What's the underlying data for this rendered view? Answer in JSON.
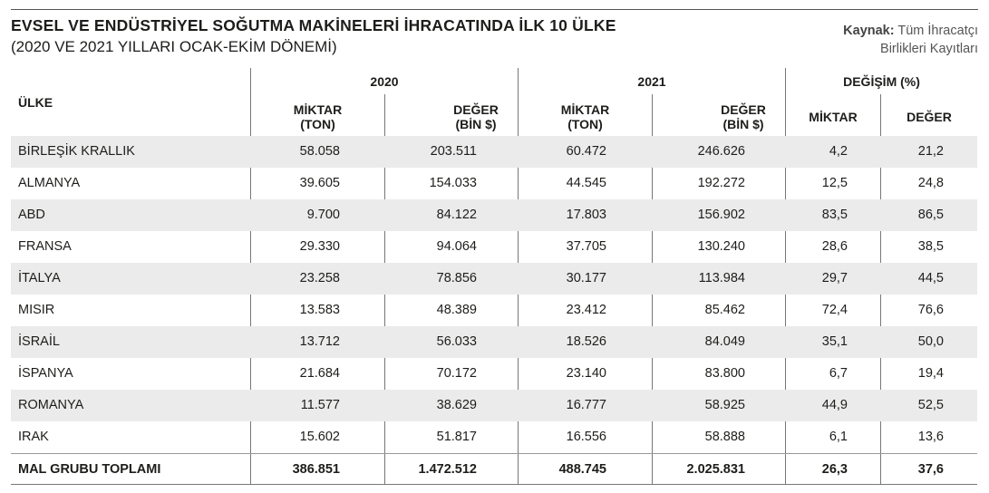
{
  "title": "EVSEL VE ENDÜSTRİYEL SOĞUTMA MAKİNELERİ İHRACATINDA İLK 10 ÜLKE",
  "subtitle": "(2020 VE 2021 YILLARI OCAK-EKİM DÖNEMİ)",
  "source": {
    "label": "Kaynak:",
    "line1": "Tüm İhracatçı",
    "line2": "Birlikleri Kayıtları"
  },
  "headers": {
    "country": "ÜLKE",
    "year_2020": "2020",
    "year_2021": "2021",
    "change": "DEĞİŞİM (%)",
    "qty_1": "MİKTAR",
    "qty_2": "(TON)",
    "val_1": "DEĞER",
    "val_2": "(BİN $)",
    "chg_qty": "MİKTAR",
    "chg_val": "DEĞER"
  },
  "rows": [
    {
      "country": "BİRLEŞİK KRALLIK",
      "q2020": "58.058",
      "v2020": "203.511",
      "q2021": "60.472",
      "v2021": "246.626",
      "dq": "4,2",
      "dv": "21,2"
    },
    {
      "country": "ALMANYA",
      "q2020": "39.605",
      "v2020": "154.033",
      "q2021": "44.545",
      "v2021": "192.272",
      "dq": "12,5",
      "dv": "24,8"
    },
    {
      "country": "ABD",
      "q2020": "9.700",
      "v2020": "84.122",
      "q2021": "17.803",
      "v2021": "156.902",
      "dq": "83,5",
      "dv": "86,5"
    },
    {
      "country": "FRANSA",
      "q2020": "29.330",
      "v2020": "94.064",
      "q2021": "37.705",
      "v2021": "130.240",
      "dq": "28,6",
      "dv": "38,5"
    },
    {
      "country": "İTALYA",
      "q2020": "23.258",
      "v2020": "78.856",
      "q2021": "30.177",
      "v2021": "113.984",
      "dq": "29,7",
      "dv": "44,5"
    },
    {
      "country": "MISIR",
      "q2020": "13.583",
      "v2020": "48.389",
      "q2021": "23.412",
      "v2021": "85.462",
      "dq": "72,4",
      "dv": "76,6"
    },
    {
      "country": "İSRAİL",
      "q2020": "13.712",
      "v2020": "56.033",
      "q2021": "18.526",
      "v2021": "84.049",
      "dq": "35,1",
      "dv": "50,0"
    },
    {
      "country": "İSPANYA",
      "q2020": "21.684",
      "v2020": "70.172",
      "q2021": "23.140",
      "v2021": "83.800",
      "dq": "6,7",
      "dv": "19,4"
    },
    {
      "country": "ROMANYA",
      "q2020": "11.577",
      "v2020": "38.629",
      "q2021": "16.777",
      "v2021": "58.925",
      "dq": "44,9",
      "dv": "52,5"
    },
    {
      "country": "IRAK",
      "q2020": "15.602",
      "v2020": "51.817",
      "q2021": "16.556",
      "v2021": "58.888",
      "dq": "6,1",
      "dv": "13,6"
    }
  ],
  "total": {
    "country": "MAL GRUBU TOPLAMI",
    "q2020": "386.851",
    "v2020": "1.472.512",
    "q2021": "488.745",
    "v2021": "2.025.831",
    "dq": "26,3",
    "dv": "37,6"
  }
}
